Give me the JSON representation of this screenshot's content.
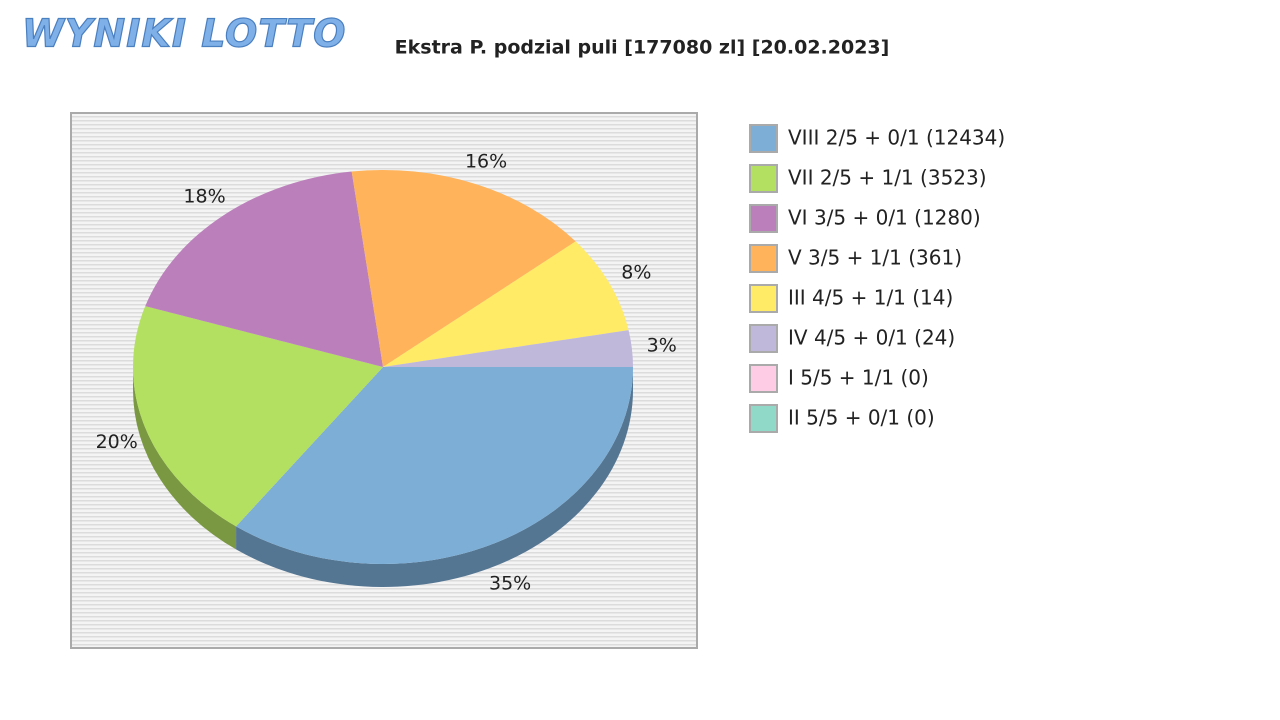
{
  "logo": "WYNIKI LOTTO",
  "chart_data": {
    "type": "pie",
    "title": "Ekstra P. podzial puli [177080 zl] [20.02.2023]",
    "categories": [
      "VIII 2/5 + 0/1 (12434)",
      "VII 2/5 + 1/1 (3523)",
      "VI 3/5 + 0/1 (1280)",
      "V 3/5 + 1/1 (361)",
      "III 4/5 + 1/1 (14)",
      "IV 4/5 + 0/1 (24)",
      "I 5/5 + 1/1 (0)",
      "II 5/5 + 0/1 (0)"
    ],
    "values": [
      35,
      20,
      18,
      16,
      8,
      3,
      0,
      0
    ],
    "value_labels": [
      "35%",
      "20%",
      "18%",
      "16%",
      "8%",
      "3%",
      null,
      null
    ],
    "colors": [
      "#7daed6",
      "#b3e060",
      "#bb7fbb",
      "#ffb35a",
      "#ffeb65",
      "#c0b8db",
      "#ffcce6",
      "#90d8c8"
    ],
    "legend": "right"
  }
}
